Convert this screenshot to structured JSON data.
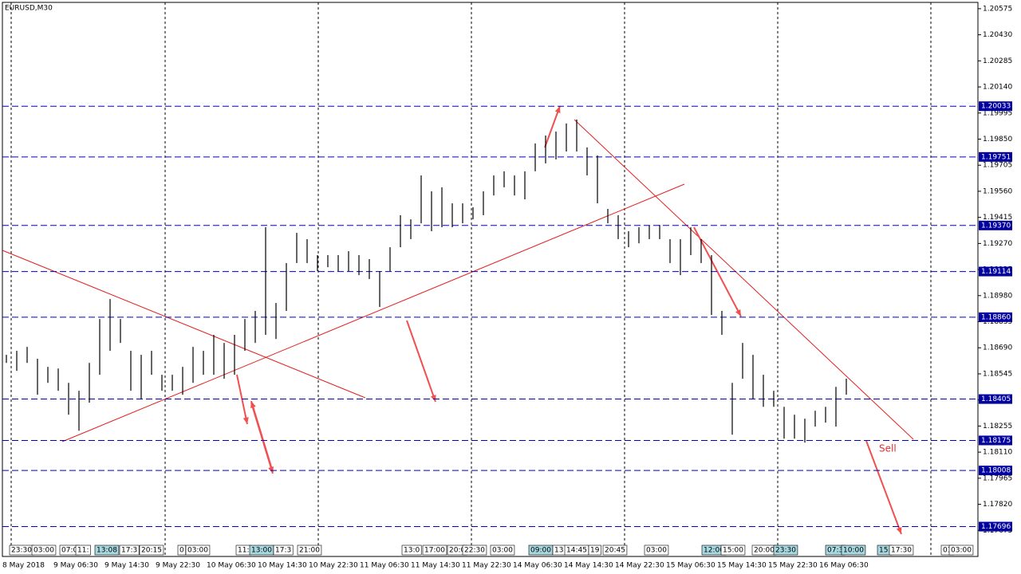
{
  "chart_data": {
    "type": "ohlc",
    "title": "EURUSD,M30",
    "ylim": [
      1.1753,
      1.2061
    ],
    "yticks": [
      1.20575,
      {
        "value": 1.2043,
        "label": "1.20430"
      },
      1.20285,
      {
        "value": 1.2014,
        "label": "1.20140"
      },
      1.19995,
      {
        "value": 1.1985,
        "label": "1.19850"
      },
      1.19705,
      {
        "value": 1.1956,
        "label": "1.19560"
      },
      1.19415,
      {
        "value": 1.1927,
        "label": "1.19270"
      },
      1.19125,
      {
        "value": 1.1898,
        "label": "1.18980"
      },
      1.18835,
      {
        "value": 1.1869,
        "label": "1.18690"
      },
      1.18545,
      {
        "value": 1.184,
        "label": "1.18400"
      },
      1.18255,
      {
        "value": 1.1811,
        "label": "1.18110"
      },
      1.17965,
      {
        "value": 1.1782,
        "label": "1.17820"
      },
      1.17675
    ],
    "levels": [
      1.20033,
      1.19751,
      {
        "value": 1.1937,
        "label": "1.19370"
      },
      1.19114,
      {
        "value": 1.1886,
        "label": "1.18860"
      },
      1.18405,
      1.18175,
      1.18008,
      1.17696
    ],
    "high": [
      1.18651,
      1.18673,
      1.18695,
      1.18629,
      1.18584,
      1.18575,
      1.18495,
      1.18451,
      1.18606,
      1.1885,
      1.18961,
      1.1885,
      1.18673,
      1.18651,
      1.18673,
      1.1854,
      1.1854,
      1.18584,
      1.18695,
      1.18673,
      1.18762,
      1.18717,
      1.18762,
      1.1885,
      1.18895,
      1.1936,
      1.18939,
      1.19161,
      1.19329,
      1.19294,
      1.19205,
      1.19205,
      1.19205,
      1.19227,
      1.19205,
      1.19183,
      1.19116,
      1.19249,
      1.19427,
      1.19404,
      1.19648,
      1.1956,
      1.19582,
      1.19493,
      1.19493,
      1.19471,
      1.1956,
      1.19648,
      1.19671,
      1.19648,
      1.19671,
      1.19826,
      1.1987,
      1.19892,
      1.19937,
      1.19959,
      1.19804,
      1.19759,
      1.19462,
      1.19427,
      1.19338,
      1.1936,
      1.19369,
      1.19373,
      1.19294,
      1.19294,
      1.1936,
      1.19294,
      1.19205,
      1.18895,
      1.18495,
      1.18717,
      1.18651,
      1.1854,
      1.18451,
      1.18362,
      1.18318,
      1.18296,
      1.1834,
      1.18362,
      1.18473,
      1.18518
    ],
    "low": [
      1.18606,
      1.18562,
      1.18606,
      1.18429,
      1.18495,
      1.18451,
      1.18318,
      1.18229,
      1.18385,
      1.1854,
      1.18673,
      1.18717,
      1.18451,
      1.18407,
      1.1854,
      1.18451,
      1.18451,
      1.18429,
      1.18495,
      1.1854,
      1.1854,
      1.18518,
      1.1854,
      1.18673,
      1.18717,
      1.18762,
      1.18739,
      1.18895,
      1.19161,
      1.19161,
      1.19116,
      1.19138,
      1.19116,
      1.19116,
      1.19094,
      1.19072,
      1.18917,
      1.19116,
      1.19249,
      1.19294,
      1.19382,
      1.19338,
      1.1936,
      1.1936,
      1.19382,
      1.19404,
      1.19427,
      1.19537,
      1.19582,
      1.19537,
      1.19515,
      1.19671,
      1.19715,
      1.19737,
      1.19781,
      1.19781,
      1.19648,
      1.19493,
      1.19382,
      1.19294,
      1.19249,
      1.19271,
      1.19294,
      1.19294,
      1.19161,
      1.19094,
      1.19205,
      1.19161,
      1.18872,
      1.18762,
      1.18207,
      1.18518,
      1.18407,
      1.18362,
      1.18362,
      1.18185,
      1.18185,
      1.18163,
      1.18252,
      1.18274,
      1.18252,
      1.18429
    ],
    "date_labels": [
      "8 May 2018",
      "9 May 06:30",
      "9 May 14:30",
      "9 May 22:30",
      "10 May 06:30",
      "10 May 14:30",
      "10 May 22:30",
      "11 May 06:30",
      "11 May 14:30",
      "11 May 22:30",
      "14 May 06:30",
      "14 May 14:30",
      "14 May 22:30",
      "15 May 06:30",
      "15 May 14:30",
      "15 May 22:30",
      "16 May 06:30"
    ],
    "time_markers": [
      "23:30",
      "03:00",
      "07:0",
      "11:",
      "13:08",
      "17:3",
      "20:15",
      "0",
      "03:00",
      "11:",
      "13:00",
      "17:3",
      "21:00",
      "13:0",
      "17:00",
      "20:0",
      "22:30",
      "03:00",
      "09:00",
      "13",
      "14:45",
      "19",
      "20:45",
      "03:00",
      "12:00",
      "15:00",
      "20:00",
      "23:30",
      "07:3",
      "10:00",
      "15:",
      "17:30",
      "01",
      "03:00"
    ],
    "annotation": "Sell"
  }
}
